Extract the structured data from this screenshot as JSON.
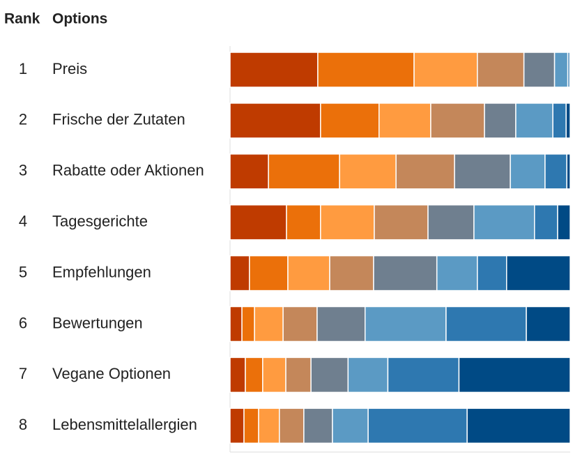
{
  "chart_data": {
    "type": "stacked-bar-horizontal",
    "rank_header": "Rank",
    "options_header": "Options",
    "ranks": [
      1,
      2,
      3,
      4,
      5,
      6,
      7,
      8
    ],
    "categories": [
      "Preis",
      "Frische der Zutaten",
      "Rabatte oder Aktionen",
      "Tagesgerichte",
      "Empfehlungen",
      "Bewertungen",
      "Vegane Optionen",
      "Lebensmittelallergien"
    ],
    "xlim": [
      0,
      100
    ],
    "series": [
      {
        "color": "#bf3b00",
        "values": [
          25.8,
          26.6,
          11.3,
          16.6,
          5.7,
          3.5,
          4.5,
          4.1
        ]
      },
      {
        "color": "#eb700a",
        "values": [
          28.3,
          17.2,
          20.9,
          10.0,
          11.3,
          3.7,
          5.1,
          4.3
        ]
      },
      {
        "color": "#ff9b40",
        "values": [
          18.6,
          15.2,
          16.6,
          15.8,
          12.3,
          8.4,
          6.8,
          6.1
        ]
      },
      {
        "color": "#c4875a",
        "values": [
          13.7,
          15.8,
          17.2,
          15.8,
          12.9,
          10.0,
          7.4,
          7.2
        ]
      },
      {
        "color": "#6f7f8f",
        "values": [
          9.0,
          9.2,
          16.4,
          13.5,
          18.6,
          14.1,
          10.9,
          8.4
        ]
      },
      {
        "color": "#5b9ac4",
        "values": [
          3.9,
          10.9,
          10.2,
          17.8,
          11.9,
          23.8,
          11.7,
          10.5
        ]
      },
      {
        "color": "#2e78b0",
        "values": [
          0.6,
          3.9,
          6.4,
          6.8,
          8.6,
          23.6,
          20.9,
          29.1
        ]
      },
      {
        "color": "#004a85",
        "values": [
          0.1,
          1.2,
          1.0,
          3.7,
          18.7,
          12.9,
          32.7,
          30.3
        ]
      }
    ]
  }
}
